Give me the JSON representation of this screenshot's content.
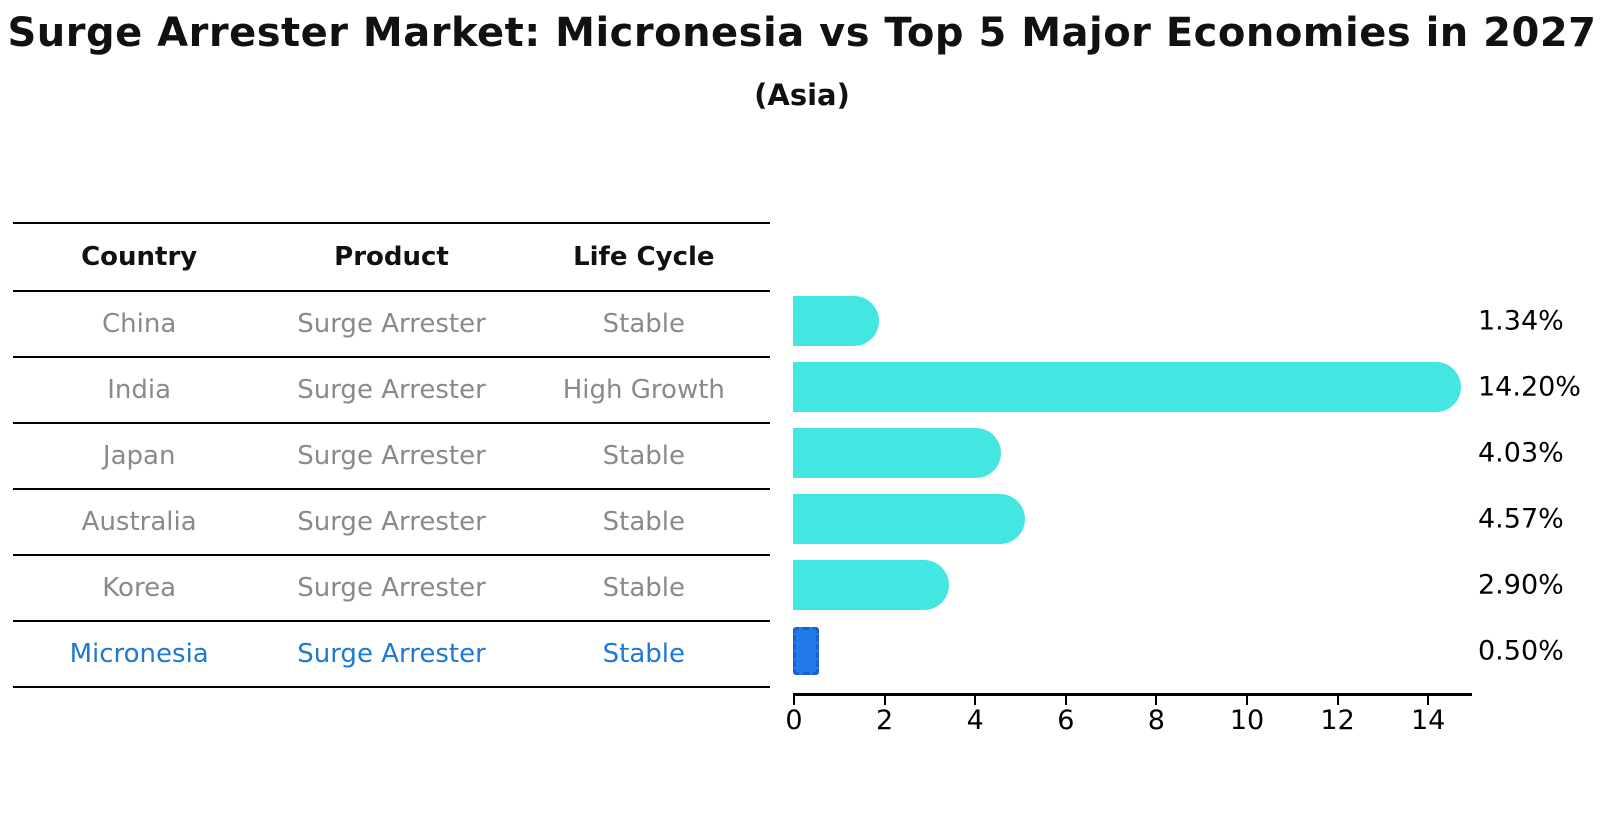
{
  "title": "Surge Arrester Market: Micronesia vs Top 5 Major Economies in 2027",
  "subtitle": "(Asia)",
  "table": {
    "headers": [
      "Country",
      "Product",
      "Life Cycle"
    ],
    "rows": [
      {
        "country": "China",
        "product": "Surge Arrester",
        "life_cycle": "Stable",
        "highlight": false
      },
      {
        "country": "India",
        "product": "Surge Arrester",
        "life_cycle": "High Growth",
        "highlight": false
      },
      {
        "country": "Japan",
        "product": "Surge Arrester",
        "life_cycle": "Stable",
        "highlight": false
      },
      {
        "country": "Australia",
        "product": "Surge Arrester",
        "life_cycle": "Stable",
        "highlight": false
      },
      {
        "country": "Korea",
        "product": "Surge Arrester",
        "life_cycle": "Stable",
        "highlight": false
      },
      {
        "country": "Micronesia",
        "product": "Surge Arrester",
        "life_cycle": "Stable",
        "highlight": true
      }
    ]
  },
  "chart_data": {
    "type": "bar",
    "orientation": "horizontal",
    "title": "Surge Arrester Market: Micronesia vs Top 5 Major Economies in 2027 (Asia)",
    "categories": [
      "China",
      "India",
      "Japan",
      "Australia",
      "Korea",
      "Micronesia"
    ],
    "values": [
      1.34,
      14.2,
      4.03,
      4.57,
      2.9,
      0.5
    ],
    "value_labels": [
      "1.34%",
      "14.20%",
      "4.03%",
      "4.57%",
      "2.90%",
      "0.50%"
    ],
    "highlight_index": 5,
    "x_ticks": [
      "0",
      "2",
      "4",
      "6",
      "8",
      "10",
      "12",
      "14"
    ],
    "x_tick_values": [
      0,
      2,
      4,
      6,
      8,
      10,
      12,
      14
    ],
    "xlim": [
      0,
      15
    ],
    "xlabel": "",
    "ylabel": "",
    "grid": false,
    "legend": false
  },
  "colors": {
    "bar": "#44E6E1",
    "highlight_bar_fill": "#2279E8",
    "highlight_bar_border": "#1a5fd0",
    "highlight_text": "#1e79d2",
    "row_text": "#8a8a8a",
    "header_text": "#111111",
    "axis": "#000000"
  }
}
